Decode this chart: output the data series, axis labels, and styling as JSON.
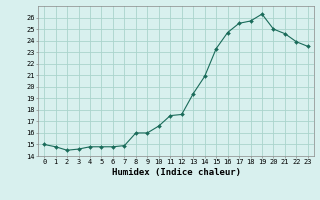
{
  "xlabel": "Humidex (Indice chaleur)",
  "x": [
    0,
    1,
    2,
    3,
    4,
    5,
    6,
    7,
    8,
    9,
    10,
    11,
    12,
    13,
    14,
    15,
    16,
    17,
    18,
    19,
    20,
    21,
    22,
    23
  ],
  "y": [
    15.0,
    14.8,
    14.5,
    14.6,
    14.8,
    14.8,
    14.8,
    14.9,
    16.0,
    16.0,
    16.6,
    17.5,
    17.6,
    19.4,
    20.9,
    23.3,
    24.7,
    25.5,
    25.7,
    26.3,
    25.0,
    24.6,
    23.9,
    23.5
  ],
  "line_color": "#1a6b5a",
  "marker": "D",
  "marker_size": 2.0,
  "bg_color": "#d8f0ee",
  "grid_color": "#aad4cc",
  "ylim": [
    14,
    27
  ],
  "yticks": [
    14,
    15,
    16,
    17,
    18,
    19,
    20,
    21,
    22,
    23,
    24,
    25,
    26
  ],
  "tick_fontsize": 5.0,
  "xlabel_fontsize": 6.5,
  "linewidth": 0.8
}
